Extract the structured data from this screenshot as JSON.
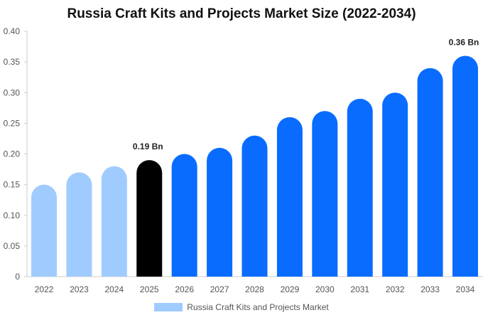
{
  "chart_data": {
    "type": "bar",
    "title": "Russia Craft Kits and Projects Market Size (2022-2034)",
    "xlabel": "",
    "ylabel": "",
    "categories": [
      "2022",
      "2023",
      "2024",
      "2025",
      "2026",
      "2027",
      "2028",
      "2029",
      "2030",
      "2031",
      "2032",
      "2033",
      "2034"
    ],
    "series": [
      {
        "name": "Russia Craft Kits and Projects Market",
        "values": [
          0.15,
          0.17,
          0.18,
          0.19,
          0.2,
          0.21,
          0.23,
          0.26,
          0.27,
          0.29,
          0.3,
          0.34,
          0.36
        ]
      }
    ],
    "ylim": [
      0,
      0.4
    ],
    "yticks": [
      "0",
      "0.05",
      "0.10",
      "0.15",
      "0.20",
      "0.25",
      "0.30",
      "0.35",
      "0.40"
    ],
    "ytick_values": [
      0,
      0.05,
      0.1,
      0.15,
      0.2,
      0.25,
      0.3,
      0.35,
      0.4
    ],
    "data_labels": [
      {
        "category": "2025",
        "text": "0.19 Bn"
      },
      {
        "category": "2034",
        "text": "0.36 Bn"
      }
    ],
    "bar_colors": {
      "historical": "#a0cbff",
      "base_year": "#000000",
      "forecast": "#0a6cff"
    },
    "base_year_index": 3,
    "grid": false,
    "legend": {
      "position": "bottom-center",
      "swatch_color": "#a0cbff"
    }
  }
}
